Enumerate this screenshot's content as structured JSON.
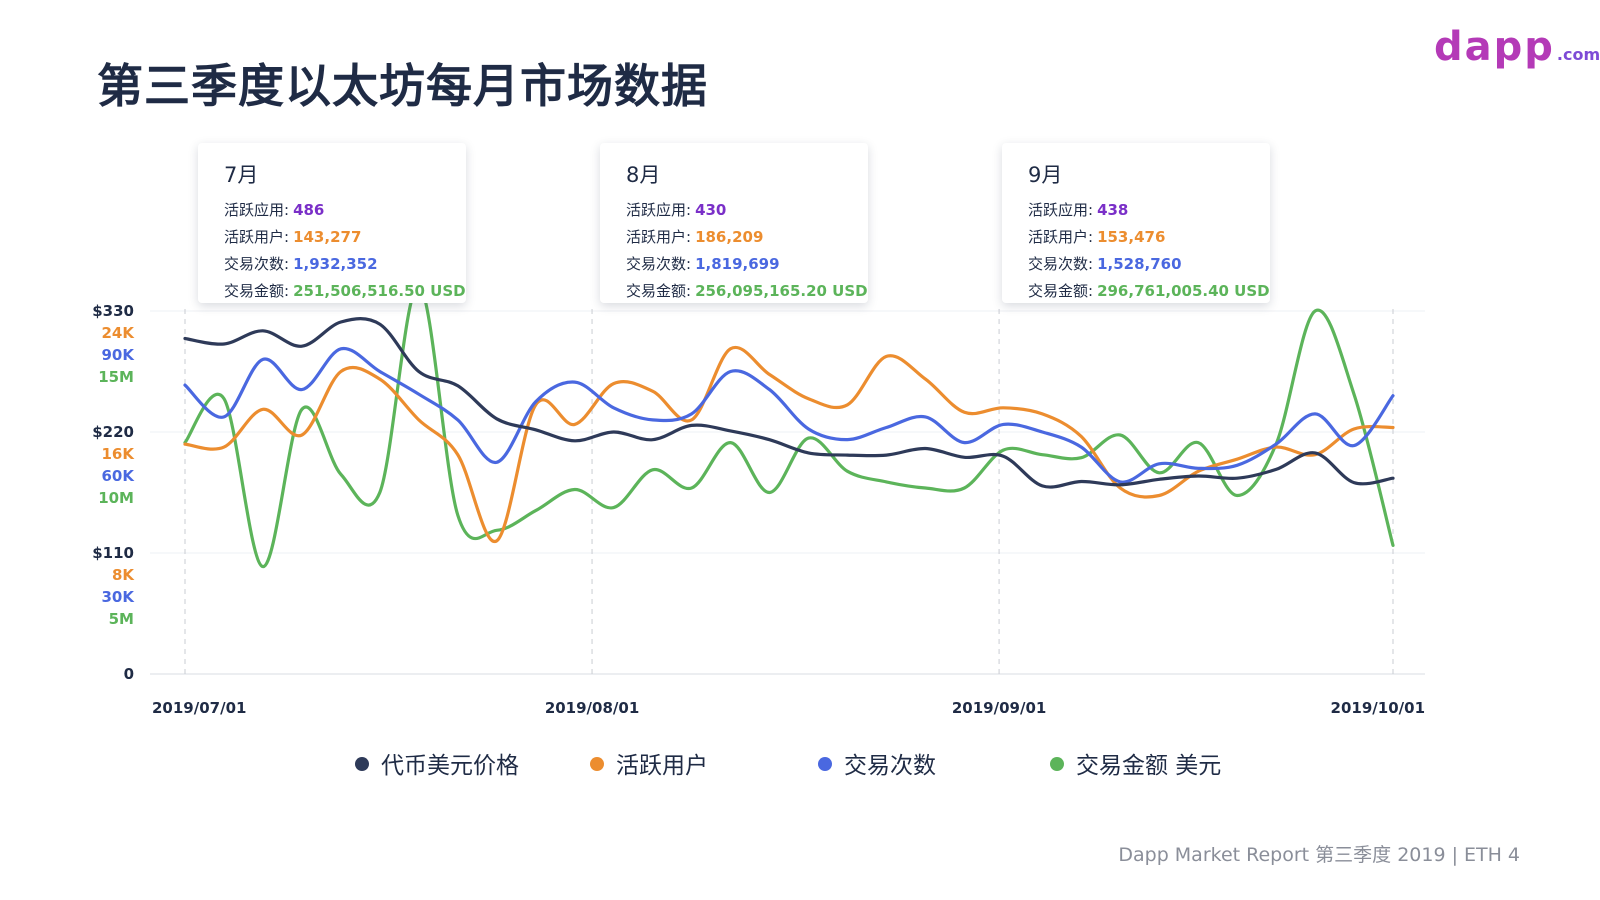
{
  "title": "第三季度以太坊每月市场数据",
  "logo": {
    "word": "dapp",
    "domain": ".com"
  },
  "cards": [
    {
      "month": "7月",
      "apps_label": "活跃应用:",
      "apps": "486",
      "users_label": "活跃用户:",
      "users": "143,277",
      "tx_label": "交易次数:",
      "tx": "1,932,352",
      "vol_label": "交易金额:",
      "vol": "251,506,516.50 USD"
    },
    {
      "month": "8月",
      "apps_label": "活跃应用:",
      "apps": "430",
      "users_label": "活跃用户:",
      "users": "186,209",
      "tx_label": "交易次数:",
      "tx": "1,819,699",
      "vol_label": "交易金额:",
      "vol": "256,095,165.20 USD"
    },
    {
      "month": "9月",
      "apps_label": "活跃应用:",
      "apps": "438",
      "users_label": "活跃用户:",
      "users": "153,476",
      "tx_label": "交易次数:",
      "tx": "1,528,760",
      "vol_label": "交易金额:",
      "vol": "296,761,005.40 USD"
    }
  ],
  "legend": [
    {
      "label": "代币美元价格",
      "color": "#2e3a59"
    },
    {
      "label": "活跃用户",
      "color": "#ec8d2f"
    },
    {
      "label": "交易次数",
      "color": "#4a68e0"
    },
    {
      "label": "交易金额 美元",
      "color": "#5cb45a"
    }
  ],
  "footer": {
    "report": "Dapp Market Report 第三季度 2019",
    "separator": "|",
    "page": "ETH 4"
  },
  "chart_data": {
    "type": "line",
    "x": [
      "2019/07/01",
      "2019/07/04",
      "2019/07/07",
      "2019/07/10",
      "2019/07/13",
      "2019/07/16",
      "2019/07/19",
      "2019/07/22",
      "2019/07/25",
      "2019/07/28",
      "2019/07/31",
      "2019/08/03",
      "2019/08/06",
      "2019/08/09",
      "2019/08/12",
      "2019/08/15",
      "2019/08/18",
      "2019/08/21",
      "2019/08/24",
      "2019/08/27",
      "2019/08/30",
      "2019/09/02",
      "2019/09/05",
      "2019/09/08",
      "2019/09/11",
      "2019/09/14",
      "2019/09/17",
      "2019/09/20",
      "2019/09/23",
      "2019/09/26",
      "2019/09/29",
      "2019/10/01"
    ],
    "x_ticks": [
      "2019/07/01",
      "2019/08/01",
      "2019/09/01",
      "2019/10/01"
    ],
    "y_ticks": [
      {
        "price": "0",
        "users": "",
        "tx": "",
        "vol": ""
      },
      {
        "price": "$110",
        "users": "8K",
        "tx": "30K",
        "vol": "5M"
      },
      {
        "price": "$220",
        "users": "16K",
        "tx": "60K",
        "vol": "10M"
      },
      {
        "price": "$330",
        "users": "24K",
        "tx": "90K",
        "vol": "15M"
      }
    ],
    "ylim": {
      "price": [
        0,
        330
      ],
      "users": [
        0,
        24000
      ],
      "tx": [
        0,
        90000
      ],
      "vol": [
        0,
        15000000
      ]
    },
    "series": [
      {
        "name": "代币美元价格",
        "axis": "price",
        "color": "#2e3a59",
        "values": [
          305,
          300,
          312,
          298,
          320,
          318,
          275,
          262,
          232,
          222,
          212,
          220,
          213,
          226,
          221,
          213,
          201,
          199,
          199,
          205,
          197,
          198,
          171,
          175,
          172,
          177,
          180,
          178,
          186,
          201,
          174,
          178
        ]
      },
      {
        "name": "活跃用户",
        "axis": "users",
        "color": "#ec8d2f",
        "values": [
          15200,
          15000,
          17500,
          15800,
          20000,
          19500,
          16800,
          14500,
          8800,
          17800,
          16500,
          19200,
          18700,
          16800,
          21500,
          19800,
          18200,
          17800,
          21000,
          19500,
          17300,
          17600,
          17200,
          15700,
          12300,
          11800,
          13400,
          14200,
          15000,
          14500,
          16200,
          16300
        ]
      },
      {
        "name": "交易次数",
        "axis": "users",
        "color": "#4a68e0",
        "values": [
          19100,
          17000,
          20800,
          18800,
          21500,
          20000,
          18500,
          16800,
          14000,
          18000,
          19300,
          17600,
          16800,
          17200,
          20000,
          18800,
          16200,
          15500,
          16300,
          17000,
          15300,
          16500,
          16000,
          15000,
          12700,
          13900,
          13600,
          13800,
          15200,
          17200,
          15100,
          18400
        ]
      },
      {
        "name": "交易金额 美元",
        "axis": "users",
        "color": "#5cb45a",
        "values": [
          15300,
          18200,
          7100,
          17500,
          13200,
          12000,
          25700,
          10500,
          9500,
          10800,
          12200,
          11000,
          13500,
          12300,
          15300,
          12000,
          15600,
          13400,
          12700,
          12300,
          12300,
          14800,
          14500,
          14300,
          15800,
          13300,
          15300,
          11800,
          15200,
          24000,
          18500,
          8500
        ]
      }
    ],
    "grid": true,
    "legend_position": "bottom"
  }
}
